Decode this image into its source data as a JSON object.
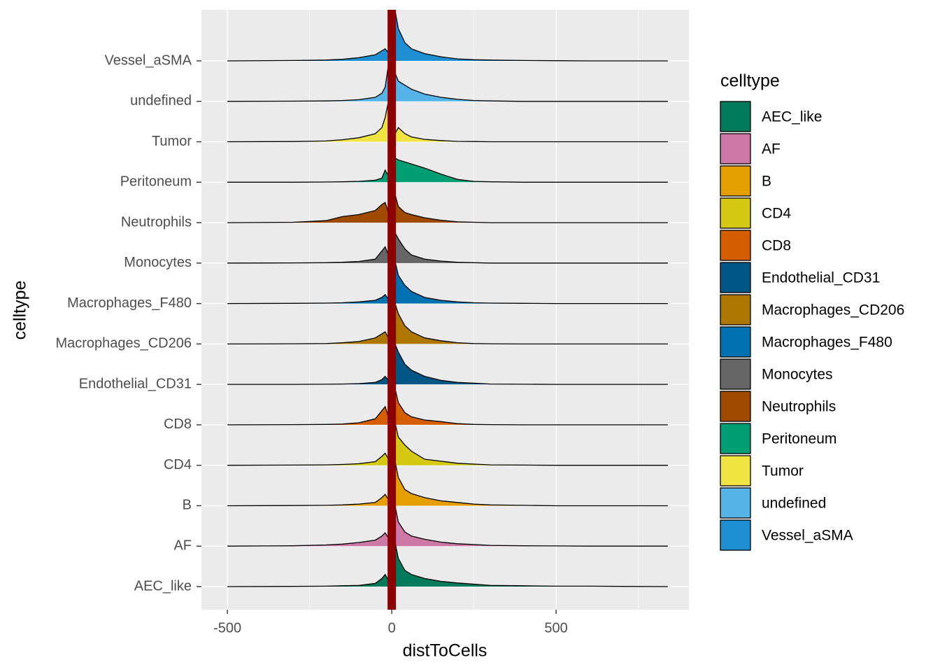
{
  "chart_data": {
    "type": "ridgeline",
    "x_label": "distToCells",
    "y_label": "celltype",
    "legend_title": "celltype",
    "xlim": [
      -579,
      904
    ],
    "xticks": [
      -500,
      0,
      500
    ],
    "xminor": [
      -250,
      250,
      750
    ],
    "vline": 0,
    "vline_color": "#8b0000",
    "grid": true,
    "x": [
      -500,
      -300,
      -200,
      -150,
      -100,
      -50,
      -30,
      -20,
      -10,
      0,
      10,
      20,
      40,
      60,
      100,
      150,
      200,
      250,
      300,
      400,
      500,
      600,
      700,
      840
    ],
    "series": [
      {
        "name": "AEC_like",
        "color": "#017a5c",
        "values": [
          0,
          0.005,
          0.01,
          0.02,
          0.03,
          0.08,
          0.2,
          0.3,
          0.15,
          0.3,
          1.1,
          0.7,
          0.4,
          0.3,
          0.2,
          0.13,
          0.09,
          0.06,
          0.03,
          0.02,
          0.01,
          0.01,
          0.005,
          0
        ]
      },
      {
        "name": "AF",
        "color": "#cc79a7",
        "values": [
          0,
          0.01,
          0.03,
          0.05,
          0.09,
          0.15,
          0.25,
          0.33,
          0.2,
          0.3,
          1.0,
          0.6,
          0.35,
          0.25,
          0.17,
          0.1,
          0.06,
          0.04,
          0.02,
          0.01,
          0.005,
          0,
          0,
          0
        ]
      },
      {
        "name": "B",
        "color": "#e69f00",
        "values": [
          0,
          0.005,
          0.01,
          0.02,
          0.04,
          0.08,
          0.2,
          0.28,
          0.15,
          0.3,
          1.1,
          0.7,
          0.4,
          0.3,
          0.2,
          0.12,
          0.08,
          0.04,
          0.02,
          0.01,
          0,
          0,
          0,
          0
        ]
      },
      {
        "name": "CD4",
        "color": "#d6c914",
        "values": [
          0,
          0.005,
          0.01,
          0.02,
          0.04,
          0.09,
          0.22,
          0.3,
          0.15,
          0.3,
          1.05,
          0.7,
          0.5,
          0.35,
          0.15,
          0.1,
          0.05,
          0.03,
          0.01,
          0.005,
          0,
          0,
          0,
          0
        ]
      },
      {
        "name": "CD8",
        "color": "#d55e00",
        "values": [
          0,
          0.005,
          0.01,
          0.02,
          0.05,
          0.15,
          0.35,
          0.45,
          0.2,
          0.3,
          0.9,
          0.55,
          0.3,
          0.2,
          0.12,
          0.08,
          0.03,
          0.01,
          0.005,
          0,
          0,
          0,
          0,
          0
        ]
      },
      {
        "name": "Endothelial_CD31",
        "color": "#005685",
        "values": [
          0,
          0,
          0.005,
          0.01,
          0.02,
          0.05,
          0.12,
          0.2,
          0.1,
          0.3,
          1.0,
          0.8,
          0.5,
          0.35,
          0.2,
          0.1,
          0.05,
          0.03,
          0.01,
          0.005,
          0,
          0,
          0,
          0
        ]
      },
      {
        "name": "Macrophages_CD206",
        "color": "#ad7700",
        "values": [
          0,
          0.005,
          0.01,
          0.03,
          0.06,
          0.15,
          0.25,
          0.3,
          0.15,
          0.3,
          1.0,
          0.75,
          0.45,
          0.3,
          0.15,
          0.08,
          0.03,
          0.01,
          0.005,
          0,
          0,
          0,
          0,
          0
        ]
      },
      {
        "name": "Macrophages_F480",
        "color": "#0072b2",
        "values": [
          0,
          0.005,
          0.01,
          0.02,
          0.04,
          0.08,
          0.15,
          0.22,
          0.1,
          0.3,
          1.05,
          0.7,
          0.45,
          0.3,
          0.15,
          0.08,
          0.04,
          0.02,
          0.01,
          0.005,
          0,
          0,
          0,
          0
        ]
      },
      {
        "name": "Monocytes",
        "color": "#666666",
        "values": [
          0,
          0.005,
          0.01,
          0.02,
          0.04,
          0.1,
          0.3,
          0.4,
          0.2,
          0.3,
          0.75,
          0.6,
          0.35,
          0.2,
          0.1,
          0.05,
          0.02,
          0.01,
          0,
          0,
          0,
          0,
          0,
          0
        ]
      },
      {
        "name": "Neutrophils",
        "color": "#a04a00",
        "values": [
          0,
          0.01,
          0.05,
          0.15,
          0.2,
          0.3,
          0.45,
          0.5,
          0.25,
          0.3,
          0.7,
          0.4,
          0.25,
          0.2,
          0.12,
          0.06,
          0.02,
          0.01,
          0,
          0,
          0,
          0,
          0,
          0
        ]
      },
      {
        "name": "Peritoneum",
        "color": "#009e73",
        "values": [
          0,
          0,
          0.005,
          0.01,
          0.02,
          0.05,
          0.1,
          0.3,
          0.15,
          0.3,
          0.6,
          0.55,
          0.5,
          0.45,
          0.35,
          0.2,
          0.07,
          0.02,
          0.01,
          0,
          0,
          0,
          0,
          0
        ]
      },
      {
        "name": "Tumor",
        "color": "#f0e442",
        "values": [
          0,
          0.005,
          0.02,
          0.05,
          0.1,
          0.2,
          0.35,
          0.6,
          1.0,
          0.8,
          0.2,
          0.35,
          0.2,
          0.12,
          0.06,
          0.03,
          0.01,
          0.005,
          0,
          0,
          0,
          0,
          0,
          0
        ]
      },
      {
        "name": "undefined",
        "color": "#56b4e9",
        "values": [
          0,
          0.005,
          0.01,
          0.02,
          0.04,
          0.1,
          0.2,
          0.35,
          0.9,
          0.8,
          0.7,
          0.5,
          0.4,
          0.3,
          0.18,
          0.1,
          0.05,
          0.02,
          0.01,
          0,
          0,
          0,
          0,
          0
        ]
      },
      {
        "name": "Vessel_aSMA",
        "color": "#1e90d2",
        "values": [
          0,
          0.01,
          0.02,
          0.04,
          0.08,
          0.15,
          0.25,
          0.3,
          0.2,
          0.5,
          1.25,
          0.8,
          0.45,
          0.3,
          0.18,
          0.1,
          0.05,
          0.03,
          0.02,
          0.01,
          0.005,
          0,
          0,
          0
        ]
      }
    ]
  }
}
